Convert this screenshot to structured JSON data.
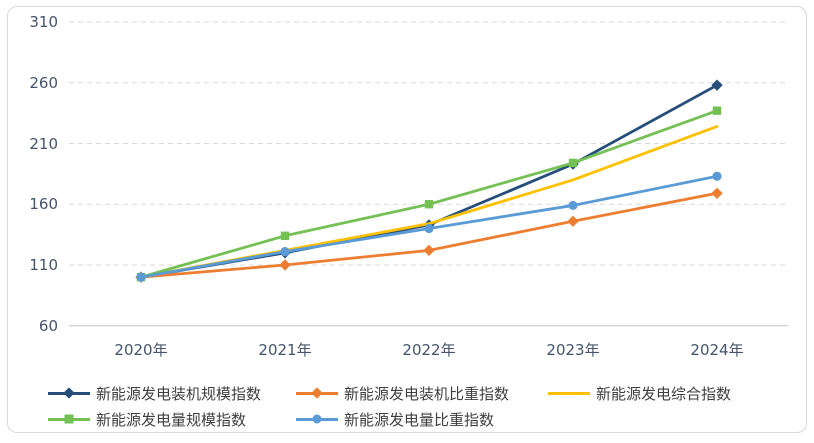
{
  "chart_data": {
    "type": "line",
    "title": "",
    "xlabel": "",
    "ylabel": "",
    "categories": [
      "2020年",
      "2021年",
      "2022年",
      "2023年",
      "2024年"
    ],
    "yticks": [
      310,
      260,
      210,
      160,
      110,
      60
    ],
    "ylim": [
      60,
      310
    ],
    "grid": "horizontal-dashed",
    "legend_position": "bottom",
    "axis_label_color": "#44546a",
    "gridline_color": "#d9d9d9",
    "axis_line_color": "#c0c0c0",
    "series": [
      {
        "name": "新能源发电装机规模指数",
        "color": "#254e7b",
        "marker": "diamond",
        "values": [
          100,
          120,
          143,
          193,
          258
        ]
      },
      {
        "name": "新能源发电装机比重指数",
        "color": "#ed7d31",
        "marker": "diamond",
        "values": [
          100,
          110,
          122,
          146,
          169
        ]
      },
      {
        "name": "新能源发电综合指数",
        "color": "#ffc000",
        "marker": "none",
        "values": [
          100,
          122,
          144,
          180,
          224
        ]
      },
      {
        "name": "新能源发电量规模指数",
        "color": "#74c054",
        "marker": "square",
        "values": [
          100,
          134,
          160,
          194,
          237
        ]
      },
      {
        "name": "新能源发电量比重指数",
        "color": "#5b9bd5",
        "marker": "circle",
        "values": [
          100,
          121,
          140,
          159,
          183
        ]
      }
    ]
  }
}
